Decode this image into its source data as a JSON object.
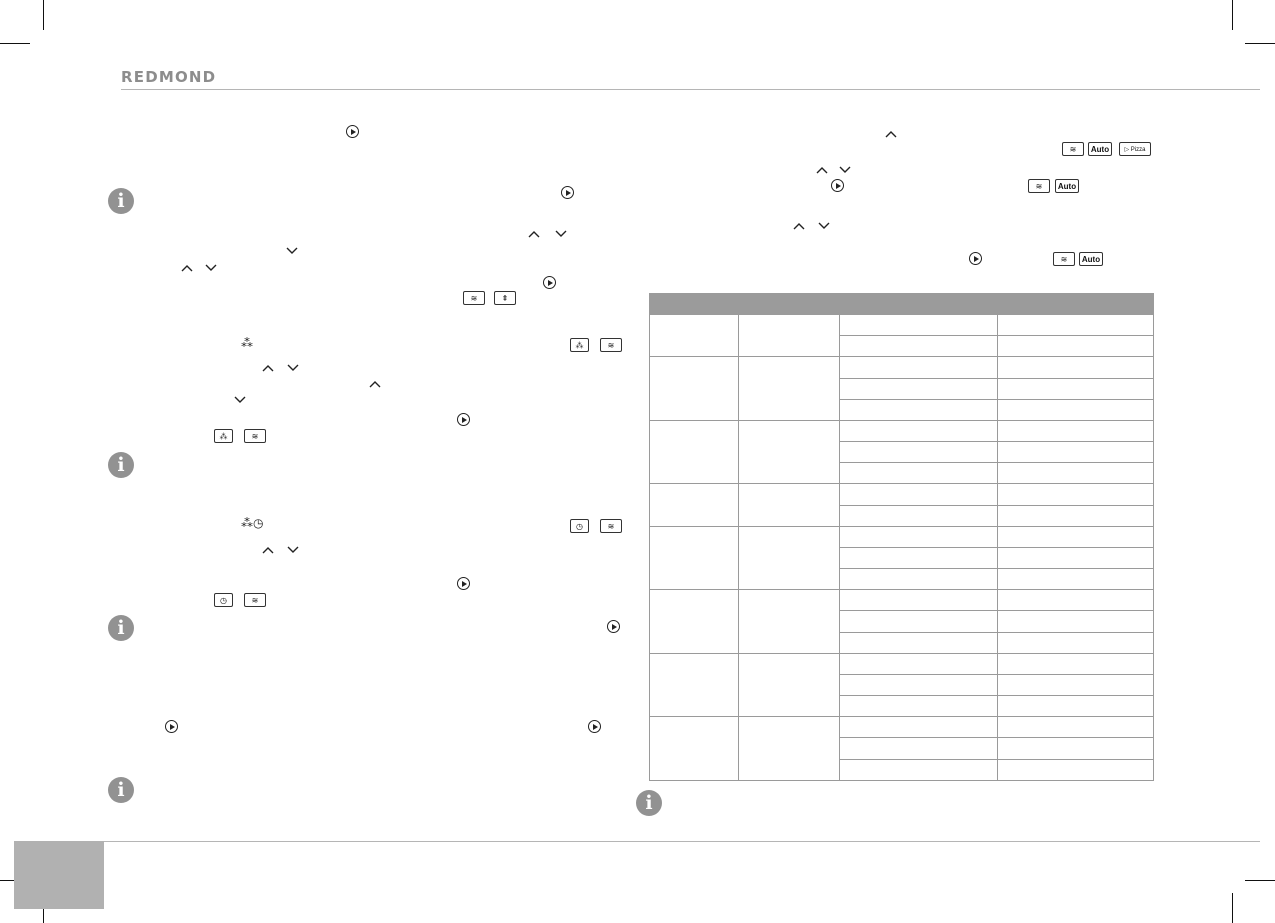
{
  "brand": {
    "logo_text": "REDMOND"
  },
  "icons": {
    "play": "play-icon",
    "chevron_up": "chevron-up-icon",
    "chevron_down": "chevron-down-icon",
    "info": "info-icon",
    "grill": "grill-icon",
    "defrost": "defrost-icon",
    "defrost_timer": "defrost-timer-icon"
  },
  "info_symbol": "i",
  "display": {
    "auto_label": "Auto",
    "pizza_label": "Pizza"
  },
  "table": {
    "header_fill": "#9b9b9b",
    "columns": [
      "",
      "",
      "",
      ""
    ],
    "groups": [
      {
        "rows": 2
      },
      {
        "rows": 3
      },
      {
        "rows": 3
      },
      {
        "rows": 2
      },
      {
        "rows": 3
      },
      {
        "rows": 3
      },
      {
        "rows": 3
      },
      {
        "rows": 3
      }
    ]
  },
  "footer": {
    "page_tab_color": "#b1b1b1"
  }
}
